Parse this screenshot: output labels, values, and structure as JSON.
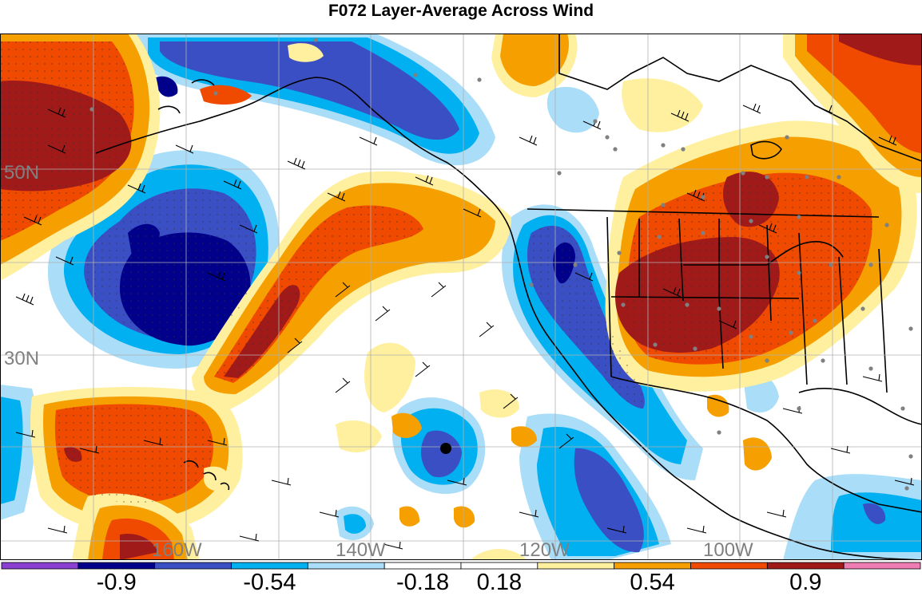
{
  "title": "F072 Layer-Average Across Wind",
  "lat_labels": [
    "50N",
    "30N"
  ],
  "lon_labels": [
    "160W",
    "140W",
    "120W",
    "100W"
  ],
  "colorbar": {
    "colors": [
      "#8a3fd1",
      "#00008b",
      "#3b4fc4",
      "#00b0f0",
      "#aaddf7",
      "#ffffff",
      "#ffffff",
      "#fff0a0",
      "#f5a000",
      "#f04a00",
      "#a01a1a",
      "#ee7db3"
    ],
    "tick_labels": [
      "-0.9",
      "-0.54",
      "-0.18",
      "0.18",
      "0.54",
      "0.9"
    ]
  },
  "marker": {
    "label": "",
    "type": "black-dot"
  }
}
